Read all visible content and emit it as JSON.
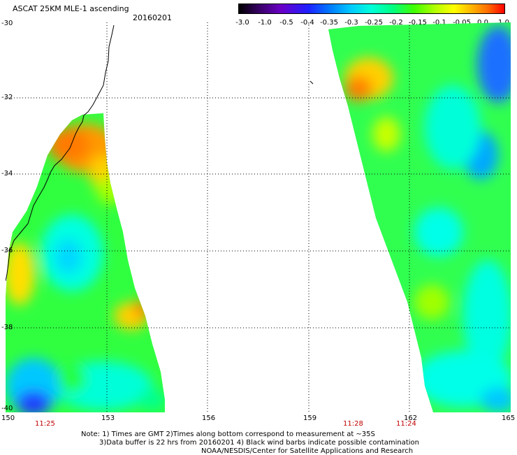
{
  "header": {
    "title": "ASCAT 25KM MLE-1 ascending",
    "date": "20160201"
  },
  "colorbar": {
    "ticks": [
      "-3.0",
      "-1.0",
      "-0.5",
      "-0.4",
      "-0.35",
      "-0.3",
      "-0.25",
      "-0.2",
      "-0.15",
      "-0.1",
      "-0.05",
      "0.0",
      "1.0"
    ],
    "colors": [
      "#000000",
      "#6a00c8",
      "#1f1fff",
      "#0077ff",
      "#00c8ff",
      "#00ffd8",
      "#00ff80",
      "#40ff00",
      "#b4ff00",
      "#ffff00",
      "#ffb000",
      "#ff6a00",
      "#ff0000"
    ]
  },
  "map": {
    "lat_labels": [
      "-30",
      "-32",
      "-34",
      "-36",
      "-38",
      "-40"
    ],
    "lat_values": [
      -30,
      -32,
      -34,
      -36,
      -38,
      -40
    ],
    "lon_labels": [
      "150",
      "153",
      "156",
      "159",
      "162",
      "165"
    ],
    "lon_values": [
      150,
      153,
      156,
      159,
      162,
      165
    ],
    "lon_range": [
      150,
      165
    ],
    "lat_range": [
      -30,
      -40
    ],
    "grid": "dotted"
  },
  "times": [
    "11:25",
    "11:28",
    "11:24"
  ],
  "notes": [
    "Note: 1) Times are GMT 2)Times along bottom correspond to measurement at ~35S",
    "3)Data buffer is 22 hrs from 20160201 4) Black wind barbs indicate possible contamination",
    "NOAA/NESDIS/Center for Satellite Applications and Research"
  ]
}
